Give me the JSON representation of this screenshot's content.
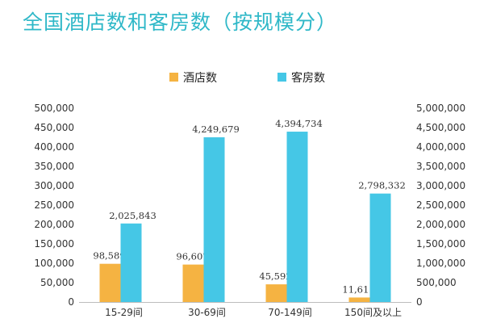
{
  "chart_data": {
    "type": "bar",
    "title": "全国酒店数和客房数（按规模分）",
    "categories": [
      "15-29间",
      "30-69间",
      "70-149间",
      "150间及以上"
    ],
    "series": [
      {
        "name": "酒店数",
        "axis": "left",
        "color": "#f5b342",
        "values": [
          98589,
          96607,
          45592,
          11611
        ],
        "labels": [
          "98,589",
          "96,607",
          "45,592",
          "11,611"
        ]
      },
      {
        "name": "客房数",
        "axis": "right",
        "color": "#45c7e6",
        "values": [
          2025843,
          4249679,
          4394734,
          2798332
        ],
        "labels": [
          "2,025,843",
          "4,249,679",
          "4,394,734",
          "2,798,332"
        ]
      }
    ],
    "y_left": {
      "ylim": [
        0,
        500000
      ],
      "ticks": [
        0,
        50000,
        100000,
        150000,
        200000,
        250000,
        300000,
        350000,
        400000,
        450000,
        500000
      ],
      "tick_labels": [
        "0",
        "50,000",
        "100,000",
        "150,000",
        "200,000",
        "250,000",
        "300,000",
        "350,000",
        "400,000",
        "450,000",
        "500,000"
      ]
    },
    "y_right": {
      "ylim": [
        0,
        5000000
      ],
      "ticks": [
        0,
        500000,
        1000000,
        1500000,
        2000000,
        2500000,
        3000000,
        3500000,
        4000000,
        4500000,
        5000000
      ],
      "tick_labels": [
        "0",
        "500,000",
        "1,000,000",
        "1,500,000",
        "2,000,000",
        "2,500,000",
        "3,000,000",
        "3,500,000",
        "4,000,000",
        "4,500,000",
        "5,000,000"
      ]
    },
    "legend_position": "top-center",
    "grid": false
  }
}
